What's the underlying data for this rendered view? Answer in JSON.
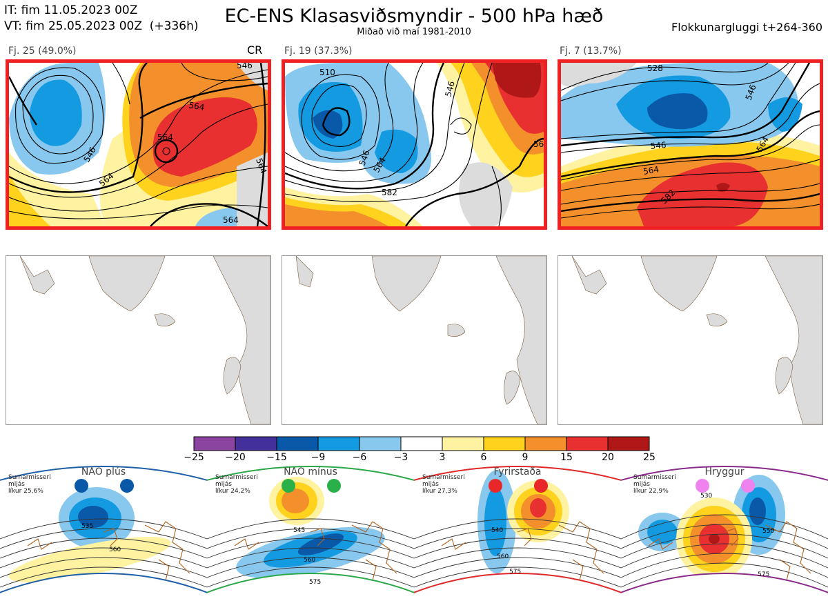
{
  "header": {
    "initial_time": "IT: fim 11.05.2023 00Z",
    "valid_time": "VT: fim 25.05.2023 00Z  (+336h)",
    "title": "EC-ENS Klasasviðsmyndir - 500 hPa hæð",
    "subtitle": "Miðað við maí 1981-2010",
    "window": "Flokkunargluggi t+264-360",
    "panel_code": "CR"
  },
  "clusters": [
    {
      "label": "Fj. 25 (49.0%)",
      "members": 25,
      "percent": 49.0,
      "contour_labels": [
        "546",
        "564",
        "564",
        "564",
        "546",
        "564",
        "564"
      ]
    },
    {
      "label": "Fj. 19 (37.3%)",
      "members": 19,
      "percent": 37.3,
      "contour_labels": [
        "510",
        "546",
        "564",
        "582",
        "546",
        "56"
      ]
    },
    {
      "label": "Fj. 7 (13.7%)",
      "members": 7,
      "percent": 13.7,
      "contour_labels": [
        "528",
        "546",
        "564",
        "582",
        "546",
        "564"
      ]
    }
  ],
  "colorbar": {
    "ticks": [
      "−25",
      "−20",
      "−15",
      "−9",
      "−6",
      "−3",
      "3",
      "6",
      "9",
      "15",
      "20",
      "25"
    ],
    "colors": [
      "#8b44a0",
      "#44309a",
      "#0a58a8",
      "#149ae0",
      "#88c8ee",
      "#ffffff",
      "#fff2a0",
      "#ffd21e",
      "#f4902c",
      "#e83030",
      "#b01818"
    ]
  },
  "regimes": [
    {
      "name": "NAO plús",
      "info": "Sumarmisseri\nmijás\nlíkur 25,6%",
      "line_color": "#1f5fa8",
      "dot_color": "#0a58a8",
      "contour_labels": [
        "535",
        "560"
      ]
    },
    {
      "name": "NAO mínus",
      "info": "Sumarmisseri\nmijás\nlíkur 24,2%",
      "line_color": "#2aa848",
      "dot_color": "#2ab048",
      "contour_labels": [
        "545",
        "560",
        "575"
      ]
    },
    {
      "name": "Fyrirstaða",
      "info": "Sumarmisseri\nmijás\nlíkur 27,3%",
      "line_color": "#e02828",
      "dot_color": "#e82828",
      "contour_labels": [
        "540",
        "560",
        "575"
      ]
    },
    {
      "name": "Hryggur",
      "info": "Sumarmisseri\nmijás\nlíkur 22,9%",
      "line_color": "#8a2a8a",
      "dot_color": "#ee82ee",
      "contour_labels": [
        "530",
        "550",
        "575"
      ]
    }
  ]
}
